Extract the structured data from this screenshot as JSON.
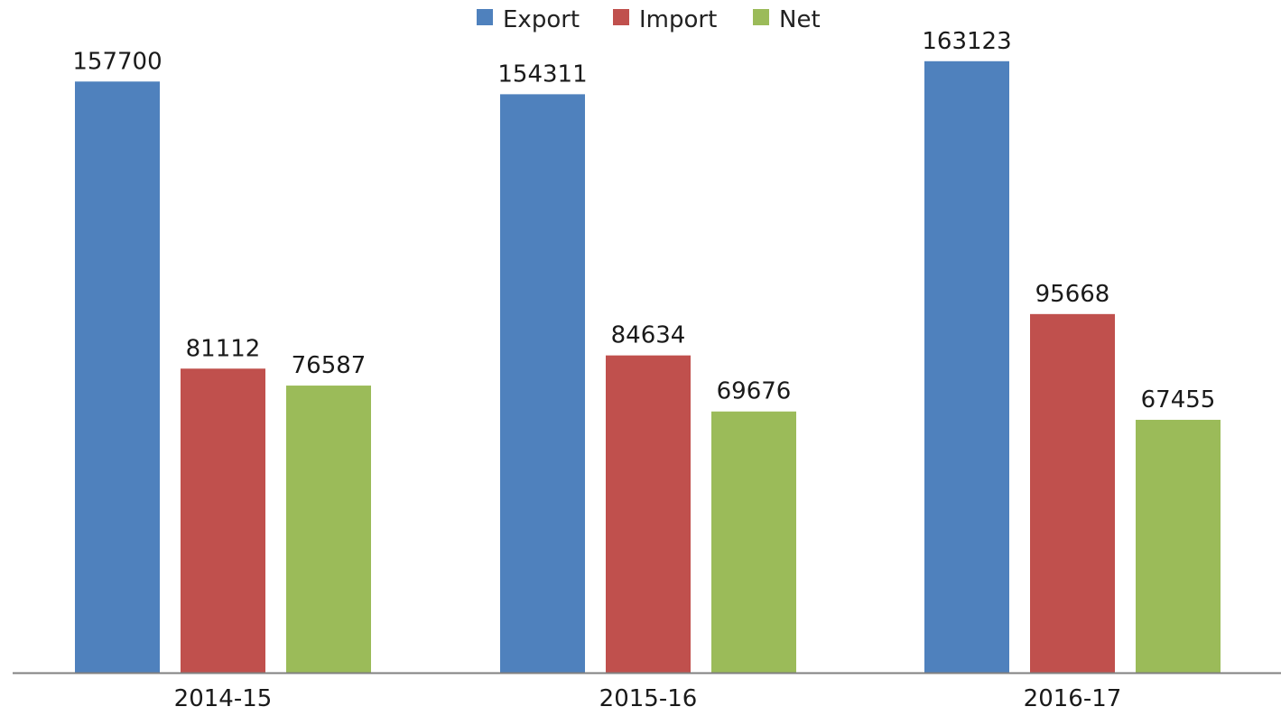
{
  "chart_data": {
    "type": "bar",
    "title": "",
    "xlabel": "",
    "ylabel": "",
    "categories": [
      "2014-15",
      "2015-16",
      "2016-17"
    ],
    "series": [
      {
        "name": "Export",
        "color": "#4f81bd",
        "values": [
          157700,
          154311,
          163123
        ]
      },
      {
        "name": "Import",
        "color": "#c0504d",
        "values": [
          81112,
          84634,
          95668
        ]
      },
      {
        "name": "Net",
        "color": "#9bbb59",
        "values": [
          76587,
          69676,
          67455
        ]
      }
    ],
    "ylim": [
      0,
      165000
    ],
    "grid": false,
    "legend_position": "top-center",
    "axis_color": "#808080"
  }
}
